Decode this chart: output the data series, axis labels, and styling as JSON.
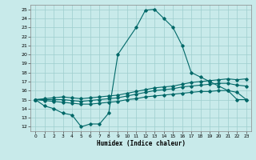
{
  "xlabel": "Humidex (Indice chaleur)",
  "bg_color": "#c8eaea",
  "grid_color": "#9ecece",
  "line_color": "#006868",
  "xlim": [
    -0.5,
    23.5
  ],
  "ylim": [
    11.5,
    25.5
  ],
  "xticks": [
    0,
    1,
    2,
    3,
    4,
    5,
    6,
    7,
    8,
    9,
    10,
    11,
    12,
    13,
    14,
    15,
    16,
    17,
    18,
    19,
    20,
    21,
    22,
    23
  ],
  "yticks": [
    12,
    13,
    14,
    15,
    16,
    17,
    18,
    19,
    20,
    21,
    22,
    23,
    24,
    25
  ],
  "line1_x": [
    0,
    1,
    2,
    3,
    4,
    5,
    6,
    7,
    8,
    9,
    11,
    12,
    13,
    14,
    15,
    16,
    17,
    18,
    19,
    20,
    21,
    22,
    23
  ],
  "line1_y": [
    15.0,
    14.3,
    14.0,
    13.5,
    13.3,
    12.0,
    12.3,
    12.3,
    13.5,
    20.0,
    23.0,
    24.9,
    25.0,
    24.0,
    23.0,
    21.0,
    18.0,
    17.5,
    17.0,
    16.5,
    16.0,
    15.0,
    15.0
  ],
  "line2_x": [
    0,
    1,
    2,
    3,
    4,
    5,
    6,
    7,
    8,
    9,
    10,
    11,
    12,
    13,
    14,
    15,
    16,
    17,
    18,
    19,
    20,
    21,
    22,
    23
  ],
  "line2_y": [
    15.0,
    15.1,
    15.2,
    15.3,
    15.2,
    15.1,
    15.2,
    15.3,
    15.4,
    15.5,
    15.7,
    15.9,
    16.1,
    16.3,
    16.4,
    16.5,
    16.7,
    16.9,
    17.0,
    17.1,
    17.2,
    17.3,
    17.2,
    17.3
  ],
  "line3_x": [
    0,
    1,
    2,
    3,
    4,
    5,
    6,
    7,
    8,
    9,
    10,
    11,
    12,
    13,
    14,
    15,
    16,
    17,
    18,
    19,
    20,
    21,
    22,
    23
  ],
  "line3_y": [
    15.0,
    15.0,
    15.0,
    15.0,
    14.9,
    14.8,
    14.9,
    15.0,
    15.1,
    15.2,
    15.4,
    15.6,
    15.8,
    16.0,
    16.1,
    16.2,
    16.4,
    16.5,
    16.6,
    16.7,
    16.8,
    16.8,
    16.6,
    16.5
  ],
  "line4_x": [
    0,
    1,
    2,
    3,
    4,
    5,
    6,
    7,
    8,
    9,
    10,
    11,
    12,
    13,
    14,
    15,
    16,
    17,
    18,
    19,
    20,
    21,
    22,
    23
  ],
  "line4_y": [
    15.0,
    14.9,
    14.8,
    14.7,
    14.6,
    14.5,
    14.5,
    14.6,
    14.7,
    14.8,
    15.0,
    15.1,
    15.3,
    15.4,
    15.5,
    15.6,
    15.7,
    15.8,
    15.9,
    15.9,
    16.0,
    16.0,
    15.8,
    15.0
  ]
}
